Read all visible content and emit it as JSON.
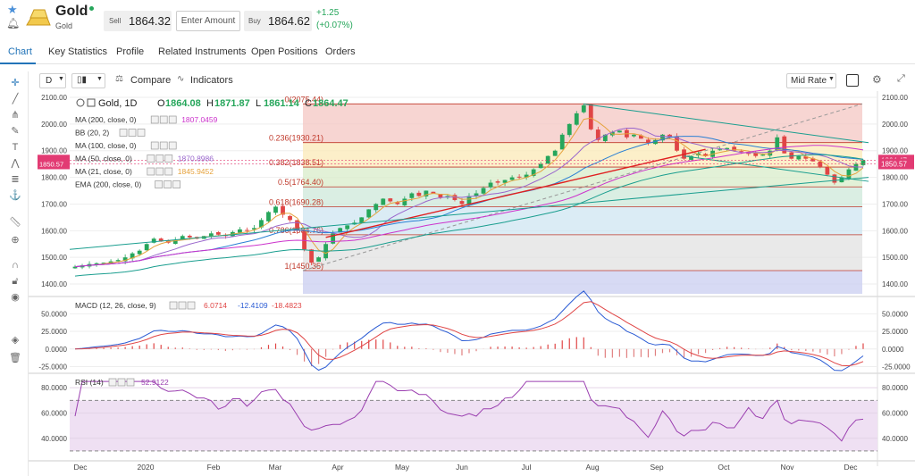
{
  "header": {
    "title": "Gold",
    "subtitle": "Gold",
    "sell_label": "Sell",
    "sell_value": "1864.32",
    "amount_placeholder": "Enter Amount",
    "buy_label": "Buy",
    "buy_value": "1864.62",
    "change_abs": "+1.25",
    "change_pct": "(+0.07%)",
    "colors": {
      "up": "#26a65b",
      "gold": "#e3a921"
    }
  },
  "tabs": [
    "Chart",
    "Key Statistics",
    "Profile",
    "Related Instruments",
    "Open Positions",
    "Orders"
  ],
  "toolbar": {
    "interval": "D",
    "compare_label": "Compare",
    "indicators_label": "Indicators",
    "rate_label": "Mid Rate"
  },
  "left_tools": [
    "crosshair-icon",
    "trendline-icon",
    "pitchfork-icon",
    "brush-icon",
    "text-icon",
    "pattern-icon",
    "fib-icon",
    "anchor-icon",
    "ruler-icon",
    "zoom-in-icon",
    "magnet-icon",
    "lock-icon",
    "eye-icon",
    "layers-icon",
    "trash-icon"
  ],
  "legend": {
    "symbol": "Gold, 1D",
    "o_label": "O",
    "o": "1864.08",
    "h_label": "H",
    "h": "1871.87",
    "l_label": "L",
    "l": "1861.14",
    "c_label": "C",
    "c": "1864.47",
    "indicators": [
      {
        "name": "MA (200, close, 0)",
        "value": "1807.0459",
        "color": "#cc33cc"
      },
      {
        "name": "BB (20, 2)",
        "value": "",
        "color": "#999999"
      },
      {
        "name": "MA (100, close, 0)",
        "value": "",
        "color": "#2a7fd4"
      },
      {
        "name": "MA (50, close, 0)",
        "value": "1870.8986",
        "color": "#9966cc"
      },
      {
        "name": "MA (21, close, 0)",
        "value": "1845.9452",
        "color": "#e6a23c"
      },
      {
        "name": "EMA (200, close, 0)",
        "value": "",
        "color": "#1a9e8f"
      }
    ],
    "macd_name": "MACD (12, 26, close, 9)",
    "macd_values": [
      "6.0714",
      "-12.4109",
      "-18.4823"
    ],
    "rsi_name": "RSI (14)",
    "rsi_value": "52.9122"
  },
  "chart_data": {
    "type": "candlestick",
    "price_ticks": [
      "2100.00",
      "2000.00",
      "1900.00",
      "1800.00",
      "1700.00",
      "1600.00",
      "1500.00",
      "1400.00"
    ],
    "price_ylim": [
      1360,
      2110
    ],
    "price_badges": [
      {
        "value": "1864.47",
        "color": "#e23b73"
      },
      {
        "value": "1850.57",
        "color": "#e23b73"
      }
    ],
    "x_labels": [
      "Dec",
      "2020",
      "Feb",
      "Mar",
      "Apr",
      "May",
      "Jun",
      "Jul",
      "Aug",
      "Sep",
      "Oct",
      "Nov",
      "Dec"
    ],
    "fib_levels": [
      {
        "label": "0(2075.44)",
        "value": 2075.44,
        "band": "#f4c7c3"
      },
      {
        "label": "0.236(1930.21)",
        "value": 1930.21,
        "band": "#fbe9b7"
      },
      {
        "label": "0.382(1838.51)",
        "value": 1838.51,
        "band": "#d8ecc9"
      },
      {
        "label": "0.5(1764.40)",
        "value": 1764.4,
        "band": "#cde8d9"
      },
      {
        "label": "0.618(1690.28)",
        "value": 1690.28,
        "band": "#cfe6f2"
      },
      {
        "label": "0.786(1584.76)",
        "value": 1584.76,
        "band": "#e2e2e2"
      },
      {
        "label": "1(1450.35)",
        "value": 1450.35,
        "band": "#c9cdf0"
      }
    ],
    "closes": [
      1465,
      1470,
      1475,
      1478,
      1480,
      1485,
      1490,
      1500,
      1515,
      1525,
      1550,
      1570,
      1560,
      1555,
      1565,
      1580,
      1575,
      1570,
      1580,
      1590,
      1585,
      1580,
      1595,
      1605,
      1600,
      1610,
      1640,
      1670,
      1690,
      1660,
      1640,
      1600,
      1530,
      1480,
      1500,
      1550,
      1590,
      1610,
      1620,
      1630,
      1650,
      1680,
      1700,
      1720,
      1710,
      1700,
      1720,
      1740,
      1730,
      1750,
      1740,
      1725,
      1730,
      1715,
      1700,
      1730,
      1740,
      1760,
      1780,
      1780,
      1790,
      1800,
      1800,
      1810,
      1830,
      1850,
      1880,
      1900,
      1960,
      2000,
      2040,
      2070,
      1980,
      1940,
      1960,
      1970,
      1975,
      1950,
      1960,
      1945,
      1930,
      1940,
      1960,
      1950,
      1900,
      1870,
      1880,
      1890,
      1880,
      1900,
      1905,
      1910,
      1900,
      1895,
      1890,
      1880,
      1885,
      1900,
      1950,
      1890,
      1870,
      1880,
      1870,
      1860,
      1840,
      1810,
      1780,
      1800,
      1830,
      1850,
      1864
    ],
    "macd_ticks": [
      "50.0000",
      "25.0000",
      "0.0000",
      "-25.0000"
    ],
    "macd_ylim": [
      -32,
      72
    ],
    "rsi_ticks": [
      "80.0000",
      "60.0000",
      "40.0000"
    ],
    "rsi_ylim": [
      25,
      90
    ],
    "rsi_bands": [
      70,
      30
    ]
  }
}
